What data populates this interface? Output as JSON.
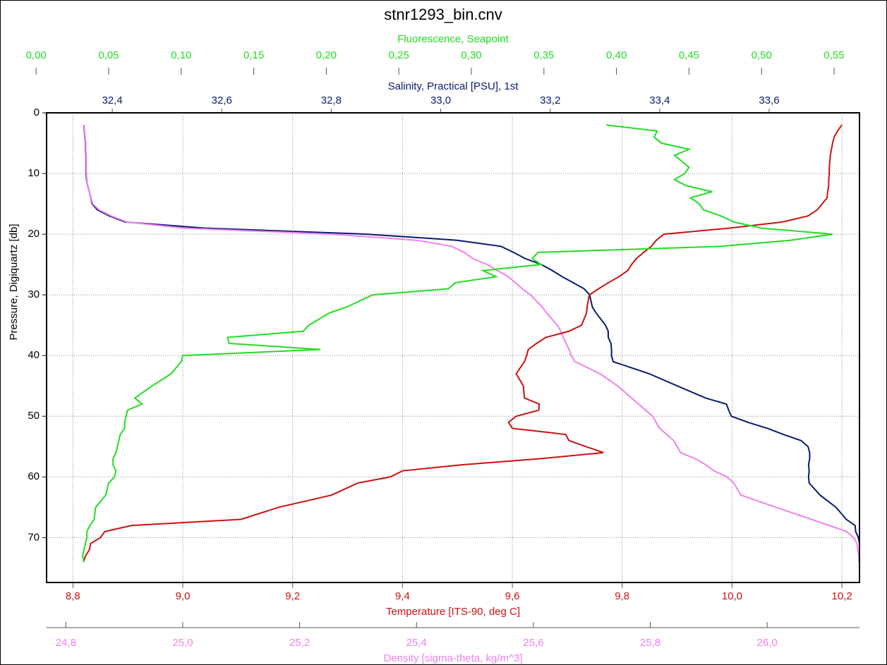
{
  "chart_data": {
    "type": "line",
    "title": "stnr1293_bin.cnv",
    "y_label": "Pressure, Digiquartz [db]",
    "ylim": [
      0,
      77.4
    ],
    "yticks": [
      0,
      10,
      20,
      30,
      40,
      50,
      60,
      70
    ],
    "grid": true,
    "y": [
      2,
      3,
      4,
      5,
      6,
      7,
      8,
      9,
      10,
      11,
      12,
      13,
      14,
      15,
      16,
      17,
      18,
      19,
      20,
      21,
      22,
      23,
      24,
      25,
      26,
      27,
      28,
      29,
      30,
      32,
      33,
      35,
      36,
      37,
      38,
      39,
      40,
      41,
      43,
      45,
      47,
      48,
      49,
      50,
      51,
      52,
      53,
      54,
      55,
      56,
      57,
      58,
      59,
      60,
      61,
      63,
      65,
      67,
      68,
      69,
      70,
      71,
      72,
      73,
      74
    ],
    "series": [
      {
        "name": "Temperature [ITS-90, deg C]",
        "color": "#cc1111",
        "axis_position": "bottom",
        "xlim": [
          8.752,
          10.232
        ],
        "xticks": [
          {
            "value": 8.8,
            "label": "8,8"
          },
          {
            "value": 9.0,
            "label": "9,0"
          },
          {
            "value": 9.2,
            "label": "9,2"
          },
          {
            "value": 9.4,
            "label": "9,4"
          },
          {
            "value": 9.6,
            "label": "9,6"
          },
          {
            "value": 9.8,
            "label": "9,8"
          },
          {
            "value": 10.0,
            "label": "10,0"
          },
          {
            "value": 10.2,
            "label": "10,2"
          }
        ],
        "values": [
          10.2,
          10.192,
          10.186,
          10.183,
          10.181,
          10.179,
          10.178,
          10.177,
          10.177,
          10.176,
          10.176,
          10.174,
          10.173,
          10.164,
          10.155,
          10.138,
          10.091,
          9.995,
          9.876,
          9.862,
          9.853,
          9.839,
          9.826,
          9.817,
          9.81,
          9.794,
          9.775,
          9.757,
          9.74,
          9.736,
          9.735,
          9.726,
          9.703,
          9.661,
          9.644,
          9.629,
          9.626,
          9.622,
          9.607,
          9.62,
          9.622,
          9.649,
          9.648,
          9.607,
          9.593,
          9.6,
          9.697,
          9.703,
          9.734,
          9.766,
          9.65,
          9.508,
          9.4,
          9.378,
          9.319,
          9.271,
          9.175,
          9.106,
          8.907,
          8.858,
          8.85,
          8.832,
          8.83,
          8.823,
          8.819
        ]
      },
      {
        "name": "Salinity, Practical [PSU], 1st",
        "color": "#0a1a6e",
        "axis_position": "top",
        "xlim": [
          32.28,
          33.765
        ],
        "xticks": [
          {
            "value": 32.4,
            "label": "32,4"
          },
          {
            "value": 32.6,
            "label": "32,6"
          },
          {
            "value": 32.8,
            "label": "32,8"
          },
          {
            "value": 33.0,
            "label": "33,0"
          },
          {
            "value": 33.2,
            "label": "33,2"
          },
          {
            "value": 33.4,
            "label": "33,4"
          },
          {
            "value": 33.6,
            "label": "33,6"
          }
        ],
        "values": [
          32.348,
          32.349,
          32.35,
          32.351,
          32.351,
          32.352,
          32.352,
          32.352,
          32.352,
          32.353,
          32.355,
          32.358,
          32.361,
          32.363,
          32.373,
          32.395,
          32.424,
          32.569,
          32.865,
          33.03,
          33.11,
          33.133,
          33.154,
          33.184,
          33.204,
          33.222,
          33.242,
          33.262,
          33.272,
          33.277,
          33.284,
          33.301,
          33.306,
          33.306,
          33.311,
          33.312,
          33.312,
          33.315,
          33.381,
          33.432,
          33.484,
          33.522,
          33.526,
          33.531,
          33.561,
          33.597,
          33.626,
          33.658,
          33.671,
          33.674,
          33.674,
          33.672,
          33.673,
          33.672,
          33.673,
          33.693,
          33.722,
          33.741,
          33.757,
          33.758,
          33.763,
          33.765,
          33.765,
          33.765,
          33.765
        ]
      },
      {
        "name": "Density [sigma-theta, kg/m^3]",
        "color": "#ee82ee",
        "axis_position": "bottom2",
        "xlim": [
          24.767,
          26.158
        ],
        "xticks": [
          {
            "value": 24.8,
            "label": "24,8"
          },
          {
            "value": 25.0,
            "label": "25,0"
          },
          {
            "value": 25.2,
            "label": "25,2"
          },
          {
            "value": 25.4,
            "label": "25,4"
          },
          {
            "value": 25.6,
            "label": "25,6"
          },
          {
            "value": 25.8,
            "label": "25,8"
          },
          {
            "value": 26.0,
            "label": "26,0"
          }
        ],
        "values": [
          24.831,
          24.832,
          24.833,
          24.834,
          24.834,
          24.835,
          24.835,
          24.835,
          24.835,
          24.836,
          24.837,
          24.84,
          24.843,
          24.846,
          24.857,
          24.878,
          24.905,
          25.002,
          25.255,
          25.4,
          25.46,
          25.482,
          25.496,
          25.521,
          25.539,
          25.557,
          25.569,
          25.581,
          25.595,
          25.615,
          25.623,
          25.641,
          25.647,
          25.651,
          25.656,
          25.661,
          25.665,
          25.671,
          25.714,
          25.744,
          25.768,
          25.78,
          25.792,
          25.804,
          25.81,
          25.816,
          25.828,
          25.84,
          25.846,
          25.852,
          25.877,
          25.895,
          25.909,
          25.931,
          25.943,
          25.955,
          26.015,
          26.076,
          26.106,
          26.136,
          26.148,
          26.154,
          26.155,
          26.157,
          26.157
        ]
      },
      {
        "name": "Fluorescence, Seapoint",
        "color": "#22dd22",
        "axis_position": "top2",
        "xlim": [
          0.0072,
          0.5675
        ],
        "xticks": [
          {
            "value": 0.0,
            "label": "0,00"
          },
          {
            "value": 0.05,
            "label": "0,05"
          },
          {
            "value": 0.1,
            "label": "0,10"
          },
          {
            "value": 0.15,
            "label": "0,15"
          },
          {
            "value": 0.2,
            "label": "0,20"
          },
          {
            "value": 0.25,
            "label": "0,25"
          },
          {
            "value": 0.3,
            "label": "0,30"
          },
          {
            "value": 0.35,
            "label": "0,35"
          },
          {
            "value": 0.4,
            "label": "0,40"
          },
          {
            "value": 0.45,
            "label": "0,45"
          },
          {
            "value": 0.5,
            "label": "0,50"
          },
          {
            "value": 0.55,
            "label": "0,55"
          }
        ],
        "values": [
          0.393,
          0.428,
          0.426,
          0.431,
          0.45,
          0.44,
          0.445,
          0.45,
          0.447,
          0.44,
          0.448,
          0.466,
          0.451,
          0.457,
          0.46,
          0.472,
          0.481,
          0.5,
          0.549,
          0.52,
          0.472,
          0.346,
          0.342,
          0.348,
          0.308,
          0.317,
          0.289,
          0.284,
          0.232,
          0.214,
          0.202,
          0.188,
          0.184,
          0.132,
          0.133,
          0.196,
          0.101,
          0.1,
          0.093,
          0.08,
          0.068,
          0.073,
          0.063,
          0.062,
          0.061,
          0.061,
          0.058,
          0.057,
          0.056,
          0.055,
          0.053,
          0.053,
          0.055,
          0.054,
          0.05,
          0.048,
          0.041,
          0.04,
          0.037,
          0.035,
          0.035,
          0.034,
          0.033,
          0.032,
          0.033
        ]
      }
    ]
  }
}
